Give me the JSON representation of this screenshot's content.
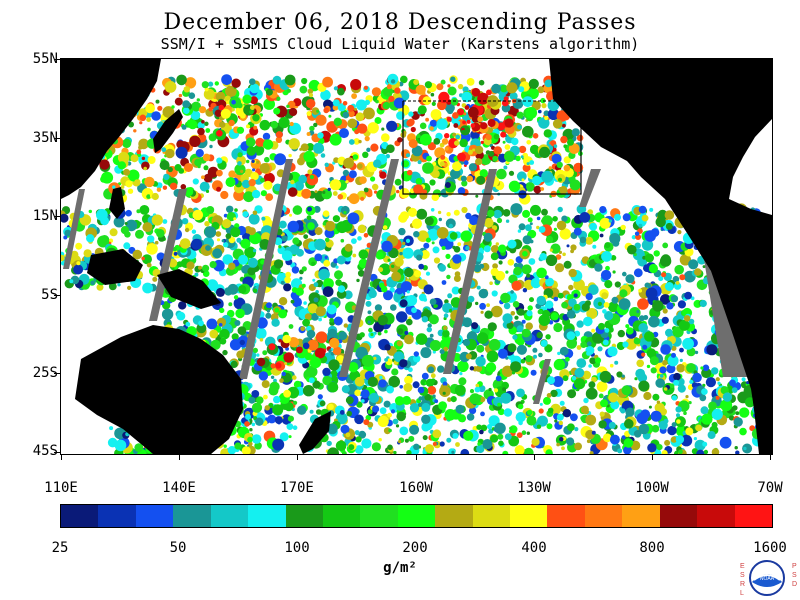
{
  "title": "December 06, 2018  Descending Passes",
  "subtitle": "SSM/I + SSMIS Cloud Liquid Water (Karstens algorithm)",
  "latitude_labels": [
    "55N",
    "35N",
    "15N",
    "5S",
    "25S",
    "45S"
  ],
  "longitude_labels": [
    "110E",
    "140E",
    "170E",
    "160W",
    "130W",
    "100W",
    "70W"
  ],
  "colorbar": {
    "labels": [
      "25",
      "50",
      "100",
      "200",
      "400",
      "800",
      "1600"
    ],
    "colors": [
      "#0a1a78",
      "#0a32b4",
      "#1450f0",
      "#1a9696",
      "#14c8c8",
      "#14f0f0",
      "#1a9a1a",
      "#14c814",
      "#20e020",
      "#14ff14",
      "#b4aa14",
      "#dcdc14",
      "#ffff14",
      "#ff5014",
      "#ff7814",
      "#ffa014",
      "#960a0a",
      "#c80a0a",
      "#ff1414"
    ],
    "units": "g/m²"
  },
  "logo": {
    "left_letters": "ESRL",
    "right_letters": "PSD",
    "center_text": "NOAA"
  }
}
